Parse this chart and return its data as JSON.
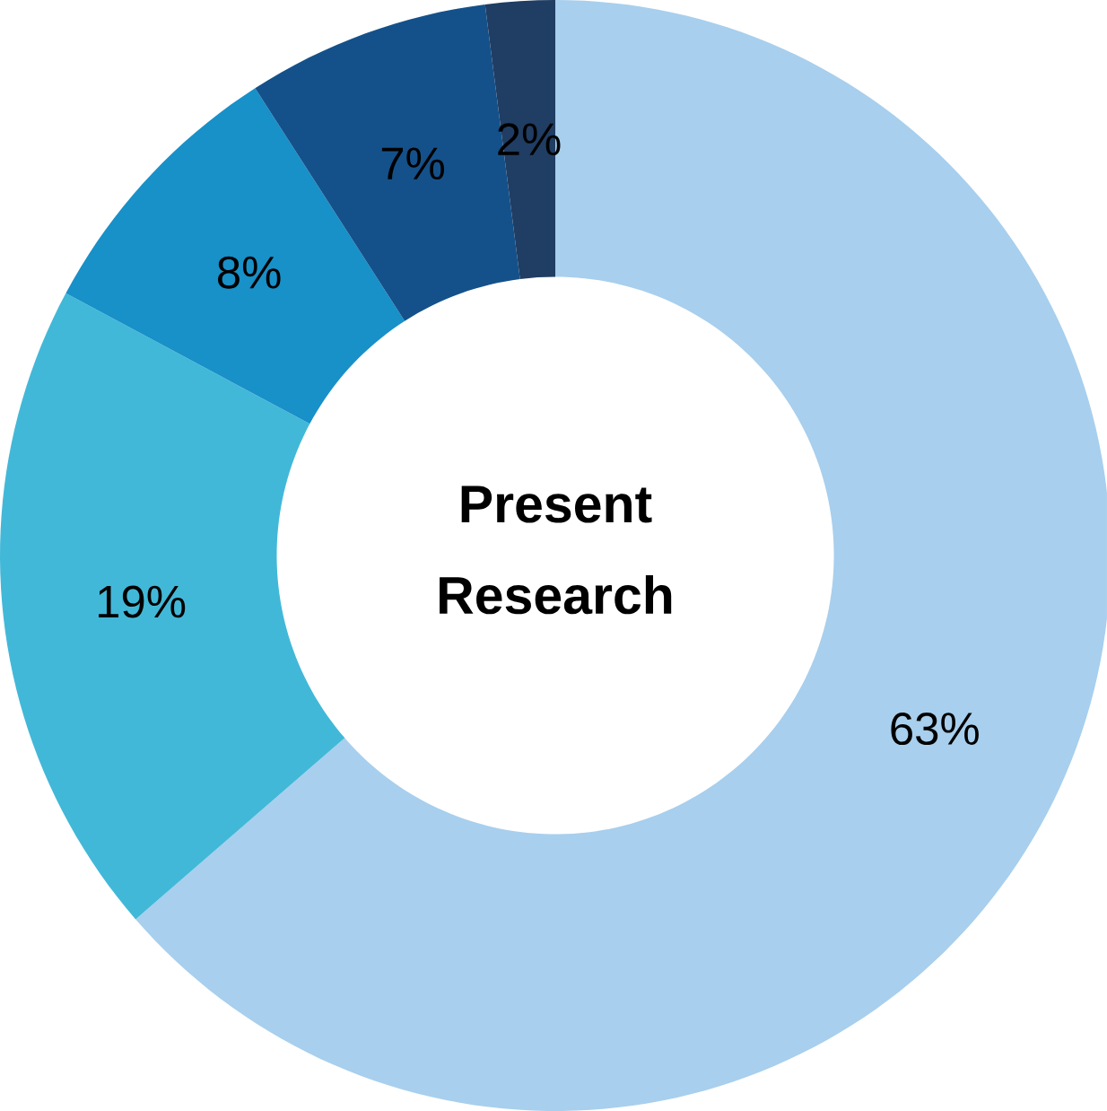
{
  "chart_data": {
    "type": "donut",
    "title": "Present Research",
    "categories": [
      null,
      null,
      null,
      null,
      null
    ],
    "values": [
      63,
      19,
      8,
      7,
      2
    ],
    "value_labels": [
      "63%",
      "19%",
      "8%",
      "7%",
      "2%"
    ],
    "colors": [
      "#a8cfed",
      "#42b8d8",
      "#1890c8",
      "#14518a",
      "#203d63"
    ]
  }
}
